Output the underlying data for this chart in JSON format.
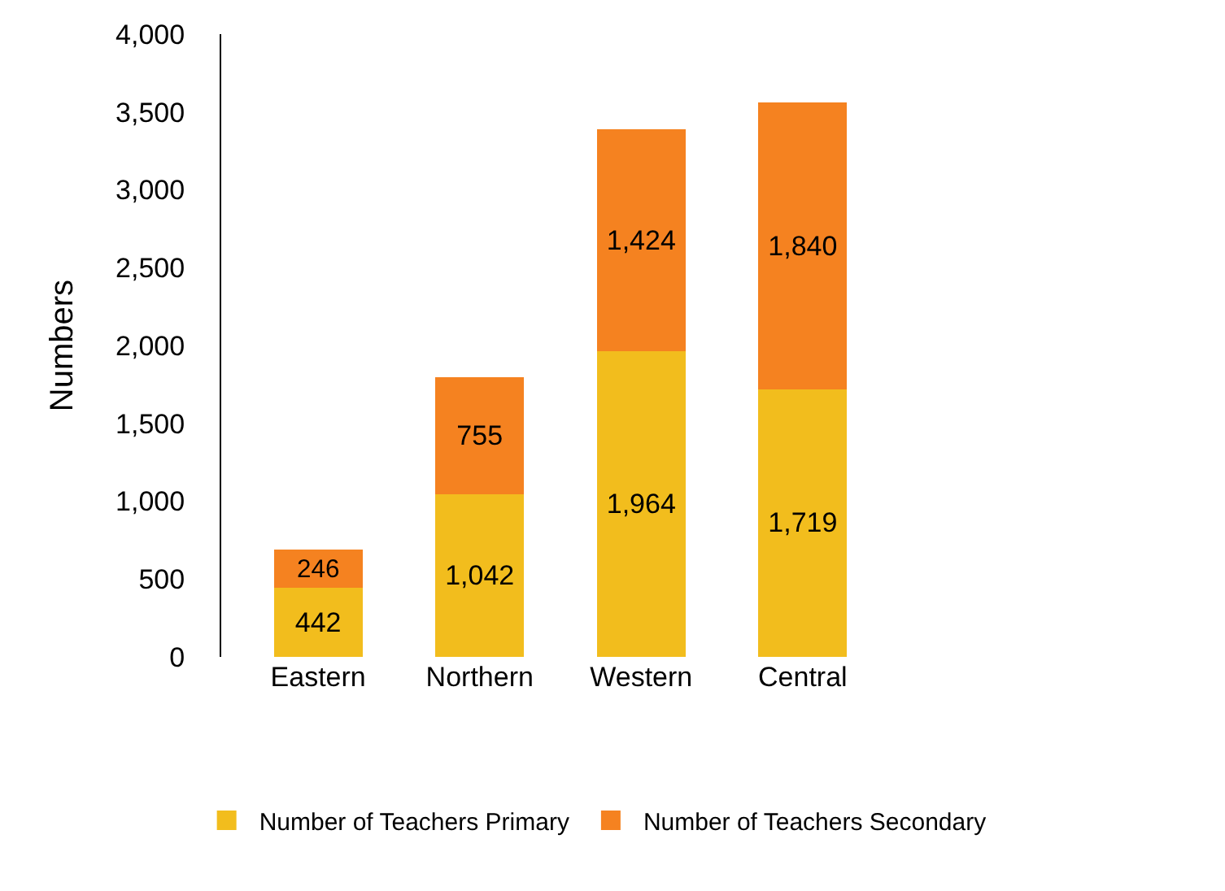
{
  "chart_data": {
    "type": "bar",
    "stacked": true,
    "ylabel": "Numbers",
    "categories": [
      "Eastern",
      "Northern",
      "Western",
      "Central"
    ],
    "series": [
      {
        "name": "Number of Teachers Primary",
        "color": "#f2bd1d",
        "values": [
          442,
          1042,
          1964,
          1719
        ],
        "value_labels": [
          "442",
          "1,042",
          "1,964",
          "1,719"
        ]
      },
      {
        "name": "Number of Teachers Secondary",
        "color": "#f58220",
        "values": [
          246,
          755,
          1424,
          1840
        ],
        "value_labels": [
          "246",
          "755",
          "1,424",
          "1,840"
        ]
      }
    ],
    "ylim": [
      0,
      4000
    ],
    "yticks": [
      0,
      500,
      {
        "value": 1000,
        "label": "1,000"
      },
      {
        "value": 1500,
        "label": "1,500"
      },
      {
        "value": 2000,
        "label": "2,000"
      },
      {
        "value": 2500,
        "label": "2,500"
      },
      {
        "value": 3000,
        "label": "3,000"
      },
      {
        "value": 3500,
        "label": "3,500"
      },
      {
        "value": 4000,
        "label": "4,000"
      }
    ],
    "grid": false,
    "legend": "bottom"
  }
}
